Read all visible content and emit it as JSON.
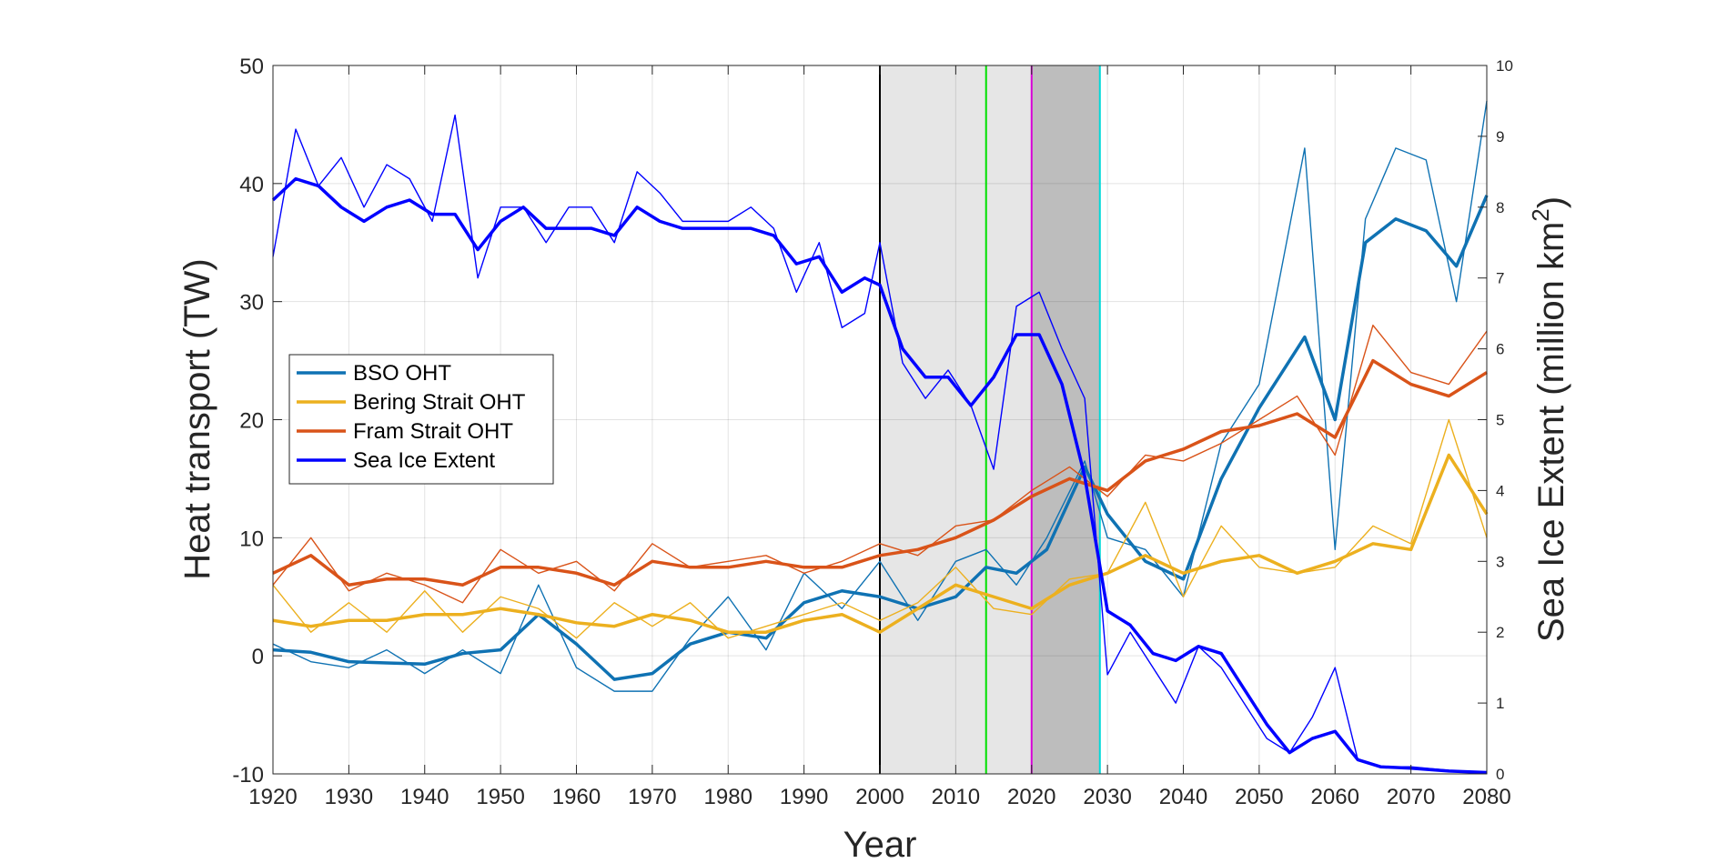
{
  "chart_data": {
    "type": "line",
    "xlabel": "Year",
    "ylabel_left": "Heat transport (TW)",
    "ylabel_right": "Sea Ice Extent (million km",
    "ylabel_right_sup": "2",
    "ylabel_right_suffix": ")",
    "xlim": [
      1920,
      2080
    ],
    "ylim_left": [
      -10,
      50
    ],
    "ylim_right": [
      0,
      10
    ],
    "xticks": [
      "1920",
      "1930",
      "1940",
      "1950",
      "1960",
      "1970",
      "1980",
      "1990",
      "2000",
      "2010",
      "2020",
      "2030",
      "2040",
      "2050",
      "2060",
      "2070",
      "2080"
    ],
    "yticks_left": [
      "-10",
      "0",
      "10",
      "20",
      "30",
      "40",
      "50"
    ],
    "yticks_right": [
      "0",
      "1",
      "2",
      "3",
      "4",
      "5",
      "6",
      "7",
      "8",
      "9",
      "10"
    ],
    "grid": true,
    "legend_position": "middle-left",
    "shaded_regions": [
      {
        "x0": 2000,
        "x1": 2020,
        "color": "#e6e6e6"
      },
      {
        "x0": 2020,
        "x1": 2029,
        "color": "#bdbdbd"
      }
    ],
    "vertical_lines": [
      {
        "x": 2000,
        "color": "#000000"
      },
      {
        "x": 2014,
        "color": "#00e000"
      },
      {
        "x": 2020,
        "color": "#d800d8"
      },
      {
        "x": 2029,
        "color": "#00d8d8"
      }
    ],
    "series": [
      {
        "name": "BSO OHT",
        "color": "#0f72b3",
        "axis": "left",
        "x": [
          1920,
          1925,
          1930,
          1935,
          1940,
          1945,
          1950,
          1955,
          1960,
          1965,
          1970,
          1975,
          1980,
          1985,
          1990,
          1995,
          2000,
          2005,
          2010,
          2014,
          2018,
          2022,
          2027,
          2030,
          2035,
          2040,
          2045,
          2050,
          2056,
          2060,
          2064,
          2068,
          2072,
          2076,
          2080
        ],
        "smooth": [
          0.5,
          0.3,
          -0.5,
          -0.6,
          -0.7,
          0.2,
          0.5,
          3.5,
          1.0,
          -2.0,
          -1.5,
          1.0,
          2.0,
          1.5,
          4.5,
          5.5,
          5.0,
          4.0,
          5.0,
          7.5,
          7.0,
          9.0,
          16.0,
          12.0,
          8.0,
          6.5,
          15.0,
          21.0,
          27.0,
          20.0,
          35.0,
          37.0,
          36.0,
          33.0,
          39.0
        ],
        "raw": [
          1.0,
          -0.5,
          -1.0,
          0.5,
          -1.5,
          0.5,
          -1.5,
          6.0,
          -1.0,
          -3.0,
          -3.0,
          1.5,
          5.0,
          0.5,
          7.0,
          4.0,
          8.0,
          3.0,
          8.0,
          9.0,
          6.0,
          10.0,
          16.5,
          10.0,
          9.0,
          5.0,
          18.0,
          23.0,
          43.0,
          9.0,
          37.0,
          43.0,
          42.0,
          30.0,
          47.0
        ]
      },
      {
        "name": "Bering Strait OHT",
        "color": "#ecb01f",
        "axis": "left",
        "x": [
          1920,
          1925,
          1930,
          1935,
          1940,
          1945,
          1950,
          1955,
          1960,
          1965,
          1970,
          1975,
          1980,
          1985,
          1990,
          1995,
          2000,
          2005,
          2010,
          2015,
          2020,
          2025,
          2030,
          2035,
          2040,
          2045,
          2050,
          2055,
          2060,
          2065,
          2070,
          2075,
          2080
        ],
        "smooth": [
          3.0,
          2.5,
          3.0,
          3.0,
          3.5,
          3.5,
          4.0,
          3.5,
          2.8,
          2.5,
          3.5,
          3.0,
          2.0,
          2.0,
          3.0,
          3.5,
          2.0,
          4.0,
          6.0,
          5.0,
          4.0,
          6.0,
          7.0,
          8.5,
          7.0,
          8.0,
          8.5,
          7.0,
          8.0,
          9.5,
          9.0,
          17.0,
          12.0
        ],
        "raw": [
          6.0,
          2.0,
          4.5,
          2.0,
          5.5,
          2.0,
          5.0,
          4.0,
          1.5,
          4.5,
          2.5,
          4.5,
          1.5,
          2.5,
          3.5,
          4.5,
          3.0,
          4.5,
          7.5,
          4.0,
          3.5,
          6.5,
          7.0,
          13.0,
          5.0,
          11.0,
          7.5,
          7.0,
          7.5,
          11.0,
          9.5,
          20.0,
          10.0
        ]
      },
      {
        "name": "Fram Strait OHT",
        "color": "#d95319",
        "axis": "left",
        "x": [
          1920,
          1925,
          1930,
          1935,
          1940,
          1945,
          1950,
          1955,
          1960,
          1965,
          1970,
          1975,
          1980,
          1985,
          1990,
          1995,
          2000,
          2005,
          2010,
          2015,
          2020,
          2025,
          2030,
          2035,
          2040,
          2045,
          2050,
          2055,
          2060,
          2065,
          2070,
          2075,
          2080
        ],
        "smooth": [
          7.0,
          8.5,
          6.0,
          6.5,
          6.5,
          6.0,
          7.5,
          7.5,
          7.0,
          6.0,
          8.0,
          7.5,
          7.5,
          8.0,
          7.5,
          7.5,
          8.5,
          9.0,
          10.0,
          11.5,
          13.5,
          15.0,
          14.0,
          16.5,
          17.5,
          19.0,
          19.5,
          20.5,
          18.5,
          25.0,
          23.0,
          22.0,
          24.0
        ],
        "raw": [
          6.0,
          10.0,
          5.5,
          7.0,
          6.0,
          4.5,
          9.0,
          7.0,
          8.0,
          5.5,
          9.5,
          7.5,
          8.0,
          8.5,
          7.0,
          8.0,
          9.5,
          8.5,
          11.0,
          11.5,
          14.0,
          16.0,
          13.5,
          17.0,
          16.5,
          18.0,
          20.0,
          22.0,
          17.0,
          28.0,
          24.0,
          23.0,
          27.5
        ]
      },
      {
        "name": "Sea Ice Extent",
        "color": "#0000ff",
        "axis": "right",
        "x": [
          1920,
          1923,
          1926,
          1929,
          1932,
          1935,
          1938,
          1941,
          1944,
          1947,
          1950,
          1953,
          1956,
          1959,
          1962,
          1965,
          1968,
          1971,
          1974,
          1977,
          1980,
          1983,
          1986,
          1989,
          1992,
          1995,
          1998,
          2000,
          2003,
          2006,
          2009,
          2012,
          2015,
          2018,
          2021,
          2024,
          2027,
          2030,
          2033,
          2036,
          2039,
          2042,
          2045,
          2048,
          2051,
          2054,
          2057,
          2060,
          2063,
          2066,
          2070,
          2075,
          2080
        ],
        "smooth": [
          8.1,
          8.4,
          8.3,
          8.0,
          7.8,
          8.0,
          8.1,
          7.9,
          7.9,
          7.4,
          7.8,
          8.0,
          7.7,
          7.7,
          7.7,
          7.6,
          8.0,
          7.8,
          7.7,
          7.7,
          7.7,
          7.7,
          7.6,
          7.2,
          7.3,
          6.8,
          7.0,
          6.9,
          6.0,
          5.6,
          5.6,
          5.2,
          5.6,
          6.2,
          6.2,
          5.5,
          4.2,
          2.3,
          2.1,
          1.7,
          1.6,
          1.8,
          1.7,
          1.2,
          0.7,
          0.3,
          0.5,
          0.6,
          0.2,
          0.1,
          0.08,
          0.04,
          0.02
        ],
        "raw": [
          7.3,
          9.1,
          8.3,
          8.7,
          8.0,
          8.6,
          8.4,
          7.8,
          9.3,
          7.0,
          8.0,
          8.0,
          7.5,
          8.0,
          8.0,
          7.5,
          8.5,
          8.2,
          7.8,
          7.8,
          7.8,
          8.0,
          7.7,
          6.8,
          7.5,
          6.3,
          6.5,
          7.5,
          5.8,
          5.3,
          5.7,
          5.2,
          4.3,
          6.6,
          6.8,
          6.0,
          5.3,
          1.4,
          2.0,
          1.5,
          1.0,
          1.8,
          1.5,
          1.0,
          0.5,
          0.3,
          0.8,
          1.5,
          0.2,
          0.1,
          0.1,
          0.05,
          0.02
        ]
      }
    ]
  }
}
